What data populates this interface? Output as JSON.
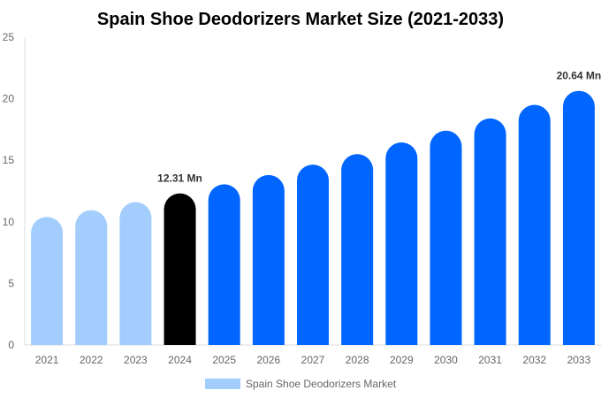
{
  "chart_data": {
    "type": "bar",
    "title": "Spain Shoe Deodorizers Market Size (2021-2033)",
    "xlabel": "",
    "ylabel": "",
    "ylim": [
      0,
      25
    ],
    "yticks": [
      "0",
      "5",
      "10",
      "15",
      "20",
      "25"
    ],
    "grid": false,
    "categories": [
      "2021",
      "2022",
      "2023",
      "2024",
      "2025",
      "2026",
      "2027",
      "2028",
      "2029",
      "2030",
      "2031",
      "2032",
      "2033"
    ],
    "series": [
      {
        "name": "Spain Shoe Deodorizers Market",
        "values": [
          10.4,
          10.95,
          11.6,
          12.31,
          13.05,
          13.8,
          14.65,
          15.5,
          16.45,
          17.4,
          18.4,
          19.5,
          20.64
        ]
      }
    ],
    "bar_colors": [
      "#a3cdfd",
      "#a3cdfd",
      "#a3cdfd",
      "#000000",
      "#0066ff",
      "#0066ff",
      "#0066ff",
      "#0066ff",
      "#0066ff",
      "#0066ff",
      "#0066ff",
      "#0066ff",
      "#0066ff"
    ],
    "data_labels": [
      {
        "index": 3,
        "text": "12.31 Mn"
      },
      {
        "index": 12,
        "text": "20.64 Mn"
      }
    ],
    "legend": {
      "label": "Spain Shoe Deodorizers Market",
      "color": "#a3cdfd",
      "placement": "bottom"
    }
  }
}
